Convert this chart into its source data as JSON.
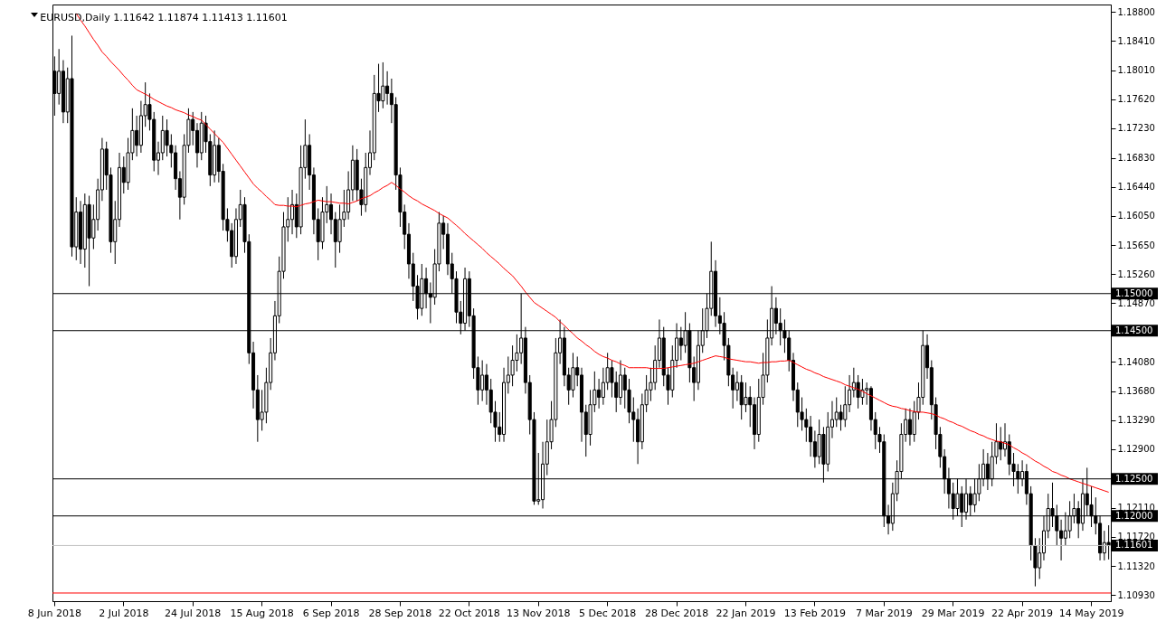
{
  "chart_data": {
    "type": "candlestick",
    "title": "EURUSD,Daily  1.11642 1.11874 1.11413 1.11601",
    "color": "#000000",
    "categories": [
      "8 Jun 2018",
      null,
      null,
      null,
      null,
      null,
      null,
      null,
      null,
      null,
      null,
      null,
      null,
      null,
      null,
      null,
      "2 Jul 2018",
      null,
      null,
      null,
      null,
      null,
      null,
      null,
      null,
      null,
      null,
      null,
      null,
      null,
      null,
      null,
      "24 Jul 2018",
      null,
      null,
      null,
      null,
      null,
      null,
      null,
      null,
      null,
      null,
      null,
      null,
      null,
      null,
      null,
      "15 Aug 2018",
      null,
      null,
      null,
      null,
      null,
      null,
      null,
      null,
      null,
      null,
      null,
      null,
      null,
      null,
      null,
      "6 Sep 2018",
      null,
      null,
      null,
      null,
      null,
      null,
      null,
      null,
      null,
      null,
      null,
      null,
      null,
      null,
      null,
      "28 Sep 2018",
      null,
      null,
      null,
      null,
      null,
      null,
      null,
      null,
      null,
      null,
      null,
      null,
      null,
      null,
      null,
      "22 Oct 2018",
      null,
      null,
      null,
      null,
      null,
      null,
      null,
      null,
      null,
      null,
      null,
      null,
      null,
      null,
      null,
      "13 Nov 2018",
      null,
      null,
      null,
      null,
      null,
      null,
      null,
      null,
      null,
      null,
      null,
      null,
      null,
      null,
      null,
      "5 Dec 2018",
      null,
      null,
      null,
      null,
      null,
      null,
      null,
      null,
      null,
      null,
      null,
      null,
      null,
      null,
      null,
      "28 Dec 2018",
      null,
      null,
      null,
      null,
      null,
      null,
      null,
      null,
      null,
      null,
      null,
      null,
      null,
      null,
      null,
      "22 Jan 2019",
      null,
      null,
      null,
      null,
      null,
      null,
      null,
      null,
      null,
      null,
      null,
      null,
      null,
      null,
      null,
      "13 Feb 2019",
      null,
      null,
      null,
      null,
      null,
      null,
      null,
      null,
      null,
      null,
      null,
      null,
      null,
      null,
      null,
      "7 Mar 2019",
      null,
      null,
      null,
      null,
      null,
      null,
      null,
      null,
      null,
      null,
      null,
      null,
      null,
      null,
      null,
      "29 Mar 2019",
      null,
      null,
      null,
      null,
      null,
      null,
      null,
      null,
      null,
      null,
      null,
      null,
      null,
      null,
      null,
      "22 Apr 2019",
      null,
      null,
      null,
      null,
      null,
      null,
      null,
      null,
      null,
      null,
      null,
      null,
      null,
      null,
      null,
      "14 May 2019",
      null,
      null,
      null,
      null
    ],
    "ohlc": [
      [
        1.18,
        1.182,
        1.174,
        1.177
      ],
      [
        1.177,
        1.183,
        1.1755,
        1.18
      ],
      [
        1.18,
        1.1815,
        1.173,
        1.1745
      ],
      [
        1.1745,
        1.1805,
        1.173,
        1.179
      ],
      [
        1.179,
        1.1848,
        1.155,
        1.1563
      ],
      [
        1.1563,
        1.163,
        1.1545,
        1.161
      ],
      [
        1.161,
        1.1625,
        1.154,
        1.156
      ],
      [
        1.156,
        1.1635,
        1.1535,
        1.162
      ],
      [
        1.162,
        1.1632,
        1.151,
        1.1575
      ],
      [
        1.1575,
        1.162,
        1.156,
        1.16
      ],
      [
        1.16,
        1.1655,
        1.1585,
        1.164
      ],
      [
        1.164,
        1.171,
        1.1625,
        1.1695
      ],
      [
        1.1695,
        1.1705,
        1.164,
        1.166
      ],
      [
        1.166,
        1.167,
        1.1555,
        1.157
      ],
      [
        1.157,
        1.1625,
        1.154,
        1.16
      ],
      [
        1.16,
        1.169,
        1.159,
        1.167
      ],
      [
        1.167,
        1.1685,
        1.1635,
        1.165
      ],
      [
        1.165,
        1.171,
        1.164,
        1.169
      ],
      [
        1.169,
        1.175,
        1.168,
        1.172
      ],
      [
        1.172,
        1.174,
        1.1685,
        1.17
      ],
      [
        1.17,
        1.176,
        1.169,
        1.174
      ],
      [
        1.174,
        1.1785,
        1.1725,
        1.1755
      ],
      [
        1.1755,
        1.177,
        1.172,
        1.1735
      ],
      [
        1.1735,
        1.1745,
        1.1665,
        1.168
      ],
      [
        1.168,
        1.1705,
        1.166,
        1.169
      ],
      [
        1.169,
        1.174,
        1.168,
        1.172
      ],
      [
        1.172,
        1.1735,
        1.1685,
        1.17
      ],
      [
        1.17,
        1.1715,
        1.167,
        1.169
      ],
      [
        1.169,
        1.17,
        1.164,
        1.1655
      ],
      [
        1.1655,
        1.1665,
        1.16,
        1.163
      ],
      [
        1.163,
        1.1715,
        1.162,
        1.17
      ],
      [
        1.17,
        1.175,
        1.169,
        1.1735
      ],
      [
        1.1735,
        1.1745,
        1.17,
        1.172
      ],
      [
        1.172,
        1.173,
        1.167,
        1.169
      ],
      [
        1.169,
        1.1745,
        1.168,
        1.173
      ],
      [
        1.173,
        1.174,
        1.169,
        1.1705
      ],
      [
        1.1705,
        1.1715,
        1.1645,
        1.166
      ],
      [
        1.166,
        1.172,
        1.165,
        1.17
      ],
      [
        1.17,
        1.171,
        1.165,
        1.1665
      ],
      [
        1.1665,
        1.1675,
        1.1585,
        1.16
      ],
      [
        1.16,
        1.1615,
        1.157,
        1.1585
      ],
      [
        1.1585,
        1.1595,
        1.1535,
        1.155
      ],
      [
        1.155,
        1.1615,
        1.154,
        1.16
      ],
      [
        1.16,
        1.164,
        1.159,
        1.162
      ],
      [
        1.162,
        1.163,
        1.1555,
        1.157
      ],
      [
        1.157,
        1.158,
        1.1405,
        1.142
      ],
      [
        1.142,
        1.1435,
        1.1345,
        1.137
      ],
      [
        1.137,
        1.139,
        1.13,
        1.133
      ],
      [
        1.133,
        1.137,
        1.1315,
        1.134
      ],
      [
        1.134,
        1.14,
        1.1325,
        1.138
      ],
      [
        1.138,
        1.144,
        1.137,
        1.142
      ],
      [
        1.142,
        1.149,
        1.141,
        1.147
      ],
      [
        1.147,
        1.155,
        1.146,
        1.153
      ],
      [
        1.153,
        1.161,
        1.152,
        1.159
      ],
      [
        1.159,
        1.163,
        1.157,
        1.16
      ],
      [
        1.16,
        1.164,
        1.158,
        1.162
      ],
      [
        1.162,
        1.1635,
        1.1575,
        1.159
      ],
      [
        1.159,
        1.17,
        1.158,
        1.167
      ],
      [
        1.167,
        1.1735,
        1.1655,
        1.17
      ],
      [
        1.17,
        1.1715,
        1.164,
        1.166
      ],
      [
        1.166,
        1.167,
        1.158,
        1.16
      ],
      [
        1.16,
        1.1615,
        1.1545,
        1.157
      ],
      [
        1.157,
        1.163,
        1.156,
        1.161
      ],
      [
        1.161,
        1.1645,
        1.1595,
        1.162
      ],
      [
        1.162,
        1.1635,
        1.158,
        1.16
      ],
      [
        1.16,
        1.161,
        1.1535,
        1.157
      ],
      [
        1.157,
        1.162,
        1.1555,
        1.16
      ],
      [
        1.16,
        1.164,
        1.159,
        1.161
      ],
      [
        1.161,
        1.1665,
        1.16,
        1.164
      ],
      [
        1.164,
        1.17,
        1.1625,
        1.168
      ],
      [
        1.168,
        1.1695,
        1.1625,
        1.164
      ],
      [
        1.164,
        1.1655,
        1.1605,
        1.162
      ],
      [
        1.162,
        1.169,
        1.161,
        1.167
      ],
      [
        1.167,
        1.172,
        1.166,
        1.169
      ],
      [
        1.169,
        1.1795,
        1.168,
        1.177
      ],
      [
        1.177,
        1.181,
        1.1745,
        1.176
      ],
      [
        1.176,
        1.1812,
        1.175,
        1.178
      ],
      [
        1.178,
        1.18,
        1.1755,
        1.177
      ],
      [
        1.177,
        1.179,
        1.173,
        1.1755
      ],
      [
        1.1755,
        1.1765,
        1.164,
        1.166
      ],
      [
        1.166,
        1.167,
        1.159,
        1.161
      ],
      [
        1.161,
        1.162,
        1.156,
        1.158
      ],
      [
        1.158,
        1.1595,
        1.152,
        1.154
      ],
      [
        1.154,
        1.1555,
        1.149,
        1.151
      ],
      [
        1.151,
        1.1525,
        1.1465,
        1.148
      ],
      [
        1.148,
        1.154,
        1.147,
        1.152
      ],
      [
        1.152,
        1.1535,
        1.148,
        1.15
      ],
      [
        1.15,
        1.1515,
        1.146,
        1.1495
      ],
      [
        1.1495,
        1.156,
        1.1485,
        1.154
      ],
      [
        1.154,
        1.161,
        1.153,
        1.1595
      ],
      [
        1.1595,
        1.1605,
        1.156,
        1.158
      ],
      [
        1.158,
        1.1595,
        1.1525,
        1.154
      ],
      [
        1.154,
        1.1555,
        1.15,
        1.152
      ],
      [
        1.152,
        1.153,
        1.146,
        1.1475
      ],
      [
        1.1475,
        1.149,
        1.1445,
        1.146
      ],
      [
        1.146,
        1.1535,
        1.145,
        1.152
      ],
      [
        1.152,
        1.153,
        1.1455,
        1.147
      ],
      [
        1.147,
        1.148,
        1.1385,
        1.14
      ],
      [
        1.14,
        1.1415,
        1.135,
        1.137
      ],
      [
        1.137,
        1.141,
        1.1355,
        1.139
      ],
      [
        1.139,
        1.1405,
        1.135,
        1.137
      ],
      [
        1.137,
        1.1385,
        1.1325,
        1.134
      ],
      [
        1.134,
        1.1355,
        1.13,
        1.132
      ],
      [
        1.132,
        1.134,
        1.13,
        1.131
      ],
      [
        1.131,
        1.14,
        1.13,
        1.138
      ],
      [
        1.138,
        1.1415,
        1.1365,
        1.139
      ],
      [
        1.139,
        1.143,
        1.1375,
        1.141
      ],
      [
        1.141,
        1.1445,
        1.1395,
        1.142
      ],
      [
        1.142,
        1.15,
        1.1405,
        1.144
      ],
      [
        1.144,
        1.1455,
        1.1365,
        1.138
      ],
      [
        1.138,
        1.139,
        1.131,
        1.133
      ],
      [
        1.133,
        1.134,
        1.1215,
        1.122
      ],
      [
        1.122,
        1.1285,
        1.1215,
        1.1222
      ],
      [
        1.1222,
        1.13,
        1.121,
        1.127
      ],
      [
        1.127,
        1.133,
        1.1255,
        1.13
      ],
      [
        1.13,
        1.1355,
        1.129,
        1.133
      ],
      [
        1.133,
        1.144,
        1.132,
        1.142
      ],
      [
        1.142,
        1.1465,
        1.1405,
        1.144
      ],
      [
        1.144,
        1.1455,
        1.1375,
        1.139
      ],
      [
        1.139,
        1.14,
        1.135,
        1.137
      ],
      [
        1.137,
        1.142,
        1.136,
        1.14
      ],
      [
        1.14,
        1.1415,
        1.1375,
        1.139
      ],
      [
        1.139,
        1.14,
        1.13,
        1.134
      ],
      [
        1.134,
        1.135,
        1.128,
        1.131
      ],
      [
        1.131,
        1.137,
        1.1295,
        1.135
      ],
      [
        1.135,
        1.1395,
        1.134,
        1.137
      ],
      [
        1.137,
        1.1385,
        1.1345,
        1.136
      ],
      [
        1.136,
        1.14,
        1.135,
        1.138
      ],
      [
        1.138,
        1.142,
        1.137,
        1.14
      ],
      [
        1.14,
        1.141,
        1.136,
        1.138
      ],
      [
        1.138,
        1.1395,
        1.134,
        1.136
      ],
      [
        1.136,
        1.141,
        1.135,
        1.139
      ],
      [
        1.139,
        1.14,
        1.1345,
        1.137
      ],
      [
        1.137,
        1.1385,
        1.1325,
        1.134
      ],
      [
        1.134,
        1.136,
        1.13,
        1.133
      ],
      [
        1.133,
        1.1345,
        1.127,
        1.13
      ],
      [
        1.13,
        1.1365,
        1.129,
        1.135
      ],
      [
        1.135,
        1.139,
        1.134,
        1.137
      ],
      [
        1.137,
        1.14,
        1.1355,
        1.138
      ],
      [
        1.138,
        1.143,
        1.137,
        1.141
      ],
      [
        1.141,
        1.1465,
        1.14,
        1.144
      ],
      [
        1.144,
        1.1455,
        1.1375,
        1.139
      ],
      [
        1.139,
        1.14,
        1.135,
        1.137
      ],
      [
        1.137,
        1.143,
        1.136,
        1.141
      ],
      [
        1.141,
        1.146,
        1.14,
        1.144
      ],
      [
        1.144,
        1.1455,
        1.141,
        1.143
      ],
      [
        1.143,
        1.1475,
        1.142,
        1.145
      ],
      [
        1.145,
        1.146,
        1.138,
        1.14
      ],
      [
        1.14,
        1.1415,
        1.1355,
        1.138
      ],
      [
        1.138,
        1.145,
        1.137,
        1.143
      ],
      [
        1.143,
        1.148,
        1.142,
        1.145
      ],
      [
        1.145,
        1.15,
        1.144,
        1.148
      ],
      [
        1.148,
        1.157,
        1.147,
        1.153
      ],
      [
        1.153,
        1.1545,
        1.1455,
        1.147
      ],
      [
        1.147,
        1.1495,
        1.1445,
        1.146
      ],
      [
        1.146,
        1.1475,
        1.141,
        1.143
      ],
      [
        1.143,
        1.144,
        1.1375,
        1.139
      ],
      [
        1.139,
        1.14,
        1.1345,
        1.137
      ],
      [
        1.137,
        1.1395,
        1.1355,
        1.138
      ],
      [
        1.138,
        1.139,
        1.133,
        1.135
      ],
      [
        1.135,
        1.138,
        1.134,
        1.136
      ],
      [
        1.136,
        1.1375,
        1.132,
        1.135
      ],
      [
        1.135,
        1.136,
        1.129,
        1.131
      ],
      [
        1.131,
        1.1385,
        1.13,
        1.136
      ],
      [
        1.136,
        1.142,
        1.135,
        1.139
      ],
      [
        1.139,
        1.1465,
        1.138,
        1.144
      ],
      [
        1.144,
        1.151,
        1.143,
        1.148
      ],
      [
        1.148,
        1.1495,
        1.1445,
        1.146
      ],
      [
        1.146,
        1.148,
        1.143,
        1.145
      ],
      [
        1.145,
        1.1465,
        1.142,
        1.144
      ],
      [
        1.144,
        1.145,
        1.1395,
        1.141
      ],
      [
        1.141,
        1.142,
        1.1355,
        1.137
      ],
      [
        1.137,
        1.138,
        1.132,
        1.134
      ],
      [
        1.134,
        1.136,
        1.1315,
        1.133
      ],
      [
        1.133,
        1.1345,
        1.13,
        1.132
      ],
      [
        1.132,
        1.1335,
        1.128,
        1.13
      ],
      [
        1.13,
        1.1315,
        1.1265,
        1.128
      ],
      [
        1.128,
        1.133,
        1.127,
        1.131
      ],
      [
        1.131,
        1.132,
        1.1245,
        1.127
      ],
      [
        1.127,
        1.134,
        1.126,
        1.132
      ],
      [
        1.132,
        1.1355,
        1.1305,
        1.133
      ],
      [
        1.133,
        1.136,
        1.132,
        1.134
      ],
      [
        1.134,
        1.135,
        1.1315,
        1.133
      ],
      [
        1.133,
        1.1375,
        1.132,
        1.135
      ],
      [
        1.135,
        1.139,
        1.134,
        1.137
      ],
      [
        1.137,
        1.14,
        1.136,
        1.138
      ],
      [
        1.138,
        1.139,
        1.1345,
        1.136
      ],
      [
        1.136,
        1.1385,
        1.135,
        1.137
      ],
      [
        1.137,
        1.138,
        1.135,
        1.1372
      ],
      [
        1.1372,
        1.1375,
        1.1315,
        1.133
      ],
      [
        1.133,
        1.134,
        1.129,
        1.131
      ],
      [
        1.131,
        1.132,
        1.1285,
        1.13
      ],
      [
        1.13,
        1.131,
        1.1185,
        1.12
      ],
      [
        1.12,
        1.1215,
        1.1175,
        1.119
      ],
      [
        1.119,
        1.1245,
        1.118,
        1.123
      ],
      [
        1.123,
        1.1275,
        1.122,
        1.126
      ],
      [
        1.126,
        1.1325,
        1.125,
        1.131
      ],
      [
        1.131,
        1.1345,
        1.13,
        1.133
      ],
      [
        1.133,
        1.1345,
        1.1295,
        1.131
      ],
      [
        1.131,
        1.1355,
        1.13,
        1.134
      ],
      [
        1.134,
        1.138,
        1.133,
        1.136
      ],
      [
        1.136,
        1.145,
        1.135,
        1.143
      ],
      [
        1.143,
        1.1445,
        1.1385,
        1.14
      ],
      [
        1.14,
        1.141,
        1.133,
        1.135
      ],
      [
        1.135,
        1.136,
        1.129,
        1.131
      ],
      [
        1.131,
        1.132,
        1.1265,
        1.128
      ],
      [
        1.128,
        1.129,
        1.123,
        1.125
      ],
      [
        1.125,
        1.1265,
        1.121,
        1.123
      ],
      [
        1.123,
        1.1245,
        1.1195,
        1.121
      ],
      [
        1.121,
        1.125,
        1.12,
        1.123
      ],
      [
        1.123,
        1.124,
        1.1185,
        1.1205
      ],
      [
        1.1205,
        1.125,
        1.1195,
        1.123
      ],
      [
        1.123,
        1.124,
        1.12,
        1.1215
      ],
      [
        1.1215,
        1.125,
        1.1205,
        1.123
      ],
      [
        1.123,
        1.127,
        1.122,
        1.125
      ],
      [
        1.125,
        1.129,
        1.124,
        1.127
      ],
      [
        1.127,
        1.1285,
        1.1235,
        1.125
      ],
      [
        1.125,
        1.13,
        1.124,
        1.128
      ],
      [
        1.128,
        1.1325,
        1.127,
        1.13
      ],
      [
        1.13,
        1.132,
        1.1275,
        1.129
      ],
      [
        1.129,
        1.1325,
        1.128,
        1.13
      ],
      [
        1.13,
        1.131,
        1.1255,
        1.127
      ],
      [
        1.127,
        1.1285,
        1.124,
        1.126
      ],
      [
        1.126,
        1.127,
        1.123,
        1.125
      ],
      [
        1.125,
        1.1275,
        1.124,
        1.126
      ],
      [
        1.126,
        1.127,
        1.1215,
        1.123
      ],
      [
        1.123,
        1.124,
        1.114,
        1.116
      ],
      [
        1.116,
        1.117,
        1.1105,
        1.113
      ],
      [
        1.113,
        1.117,
        1.1115,
        1.115
      ],
      [
        1.115,
        1.12,
        1.114,
        1.118
      ],
      [
        1.118,
        1.123,
        1.117,
        1.121
      ],
      [
        1.121,
        1.1245,
        1.1185,
        1.12
      ],
      [
        1.12,
        1.1215,
        1.116,
        1.118
      ],
      [
        1.118,
        1.1195,
        1.114,
        1.117
      ],
      [
        1.117,
        1.1205,
        1.116,
        1.118
      ],
      [
        1.118,
        1.122,
        1.117,
        1.12
      ],
      [
        1.12,
        1.123,
        1.119,
        1.121
      ],
      [
        1.121,
        1.122,
        1.117,
        1.119
      ],
      [
        1.119,
        1.125,
        1.118,
        1.123
      ],
      [
        1.123,
        1.1265,
        1.12,
        1.1215
      ],
      [
        1.1215,
        1.124,
        1.1185,
        1.12
      ],
      [
        1.12,
        1.1225,
        1.1175,
        1.119
      ],
      [
        1.119,
        1.12,
        1.114,
        1.115
      ],
      [
        1.115,
        1.118,
        1.114,
        1.1164
      ],
      [
        1.11642,
        1.11874,
        1.11413,
        1.11601
      ]
    ],
    "series": [
      {
        "type": "line",
        "color": "#ff0000",
        "values": [
          null,
          null,
          null,
          null,
          null,
          1.1878,
          1.1869,
          1.1861,
          1.1852,
          1.1843,
          1.1835,
          1.1826,
          1.182,
          1.1813,
          1.1807,
          1.1801,
          1.1794,
          1.1788,
          1.1781,
          1.1775,
          1.1772,
          1.1769,
          1.1766,
          1.1762,
          1.1759,
          1.1756,
          1.1753,
          1.1751,
          1.1748,
          1.1746,
          1.1744,
          1.1741,
          1.1739,
          1.1736,
          1.1734,
          1.1728,
          1.1722,
          1.1716,
          1.171,
          1.1704,
          1.1696,
          1.1688,
          1.168,
          1.1672,
          1.1664,
          1.1656,
          1.1648,
          1.1642,
          1.1637,
          1.1631,
          1.1626,
          1.162,
          1.1619,
          1.1619,
          1.1618,
          1.1618,
          1.1617,
          1.1619,
          1.1621,
          1.1622,
          1.1624,
          1.1626,
          1.1625,
          1.1624,
          1.1624,
          1.1623,
          1.1622,
          1.1622,
          1.1621,
          1.1623,
          1.1625,
          1.1628,
          1.163,
          1.1632,
          1.1636,
          1.1639,
          1.1643,
          1.1646,
          1.165,
          1.1646,
          1.1641,
          1.1637,
          1.1632,
          1.1628,
          1.1625,
          1.1621,
          1.1618,
          1.1615,
          1.1612,
          1.1608,
          1.1605,
          1.1602,
          1.1597,
          1.1592,
          1.1587,
          1.1581,
          1.1576,
          1.1571,
          1.1566,
          1.1561,
          1.1555,
          1.155,
          1.1545,
          1.154,
          1.1534,
          1.1529,
          1.1524,
          1.1517,
          1.151,
          1.1502,
          1.1495,
          1.1488,
          1.1484,
          1.148,
          1.1476,
          1.1472,
          1.1468,
          1.1462,
          1.1457,
          1.1451,
          1.1446,
          1.144,
          1.1436,
          1.1431,
          1.1427,
          1.1422,
          1.1418,
          1.1415,
          1.1413,
          1.141,
          1.1408,
          1.1405,
          1.1403,
          1.14,
          1.14,
          1.14,
          1.14,
          1.14,
          1.1399,
          1.1399,
          1.1399,
          1.1399,
          1.14,
          1.1401,
          1.1402,
          1.1403,
          1.1404,
          1.1405,
          1.1406,
          1.1408,
          1.141,
          1.1412,
          1.1414,
          1.1416,
          1.1415,
          1.1414,
          1.1412,
          1.1411,
          1.141,
          1.1409,
          1.1408,
          1.1408,
          1.1407,
          1.1406,
          1.1407,
          1.1407,
          1.1408,
          1.1408,
          1.1409,
          1.1409,
          1.141,
          1.1407,
          1.1404,
          1.1401,
          1.1398,
          1.1396,
          1.1393,
          1.1391,
          1.1388,
          1.1386,
          1.1384,
          1.1382,
          1.138,
          1.1377,
          1.1375,
          1.1373,
          1.1371,
          1.1368,
          1.1365,
          1.1362,
          1.1359,
          1.1356,
          1.1353,
          1.135,
          1.1348,
          1.1347,
          1.1345,
          1.1344,
          1.1342,
          1.1341,
          1.134,
          1.134,
          1.1339,
          1.1338,
          1.1336,
          1.1333,
          1.1331,
          1.1328,
          1.1326,
          1.1323,
          1.1321,
          1.1318,
          1.1315,
          1.1313,
          1.131,
          1.1308,
          1.1305,
          1.1303,
          1.1301,
          1.13,
          1.1298,
          1.1296,
          1.1292,
          1.1289,
          1.1285,
          1.1282,
          1.1278,
          1.1274,
          1.1271,
          1.1267,
          1.1264,
          1.126,
          1.1258,
          1.1255,
          1.1253,
          1.125,
          1.1248,
          1.1246,
          1.1244,
          1.1242,
          1.124,
          1.1238,
          1.1236,
          1.1234,
          1.1232
        ]
      }
    ],
    "ylim": [
      1.1085,
      1.189
    ],
    "yticks": [
      {
        "value": 1.188,
        "label": "1.18800"
      },
      {
        "value": 1.1841,
        "label": "1.18410"
      },
      {
        "value": 1.1801,
        "label": "1.18010"
      },
      {
        "value": 1.1762,
        "label": "1.17620"
      },
      {
        "value": 1.1723,
        "label": "1.17230"
      },
      {
        "value": 1.1683,
        "label": "1.16830"
      },
      {
        "value": 1.1644,
        "label": "1.16440"
      },
      {
        "value": 1.1605,
        "label": "1.16050"
      },
      {
        "value": 1.1565,
        "label": "1.15650"
      },
      {
        "value": 1.1526,
        "label": "1.15260"
      },
      {
        "value": 1.1487,
        "label": "1.14870"
      },
      {
        "value": 1.1408,
        "label": "1.14080"
      },
      {
        "value": 1.1368,
        "label": "1.13680"
      },
      {
        "value": 1.1329,
        "label": "1.13290"
      },
      {
        "value": 1.129,
        "label": "1.12900"
      },
      {
        "value": 1.1211,
        "label": "1.12110"
      },
      {
        "value": 1.1172,
        "label": "1.11720"
      },
      {
        "value": 1.1132,
        "label": "1.11320"
      },
      {
        "value": 1.1093,
        "label": "1.10930"
      }
    ],
    "ref_lines": [
      {
        "axis": "y",
        "value": 1.15,
        "label": "1.15000",
        "color": "#000000"
      },
      {
        "axis": "y",
        "value": 1.145,
        "label": "1.14500",
        "color": "#000000"
      },
      {
        "axis": "y",
        "value": 1.125,
        "label": "1.12500",
        "color": "#000000"
      },
      {
        "axis": "y",
        "value": 1.12,
        "label": "1.12000",
        "color": "#000000"
      },
      {
        "axis": "y",
        "value": 1.11601,
        "label": "1.11601",
        "color": "#c0c0c0"
      },
      {
        "axis": "y",
        "value": 1.1096,
        "color": "#ff0000"
      }
    ]
  }
}
